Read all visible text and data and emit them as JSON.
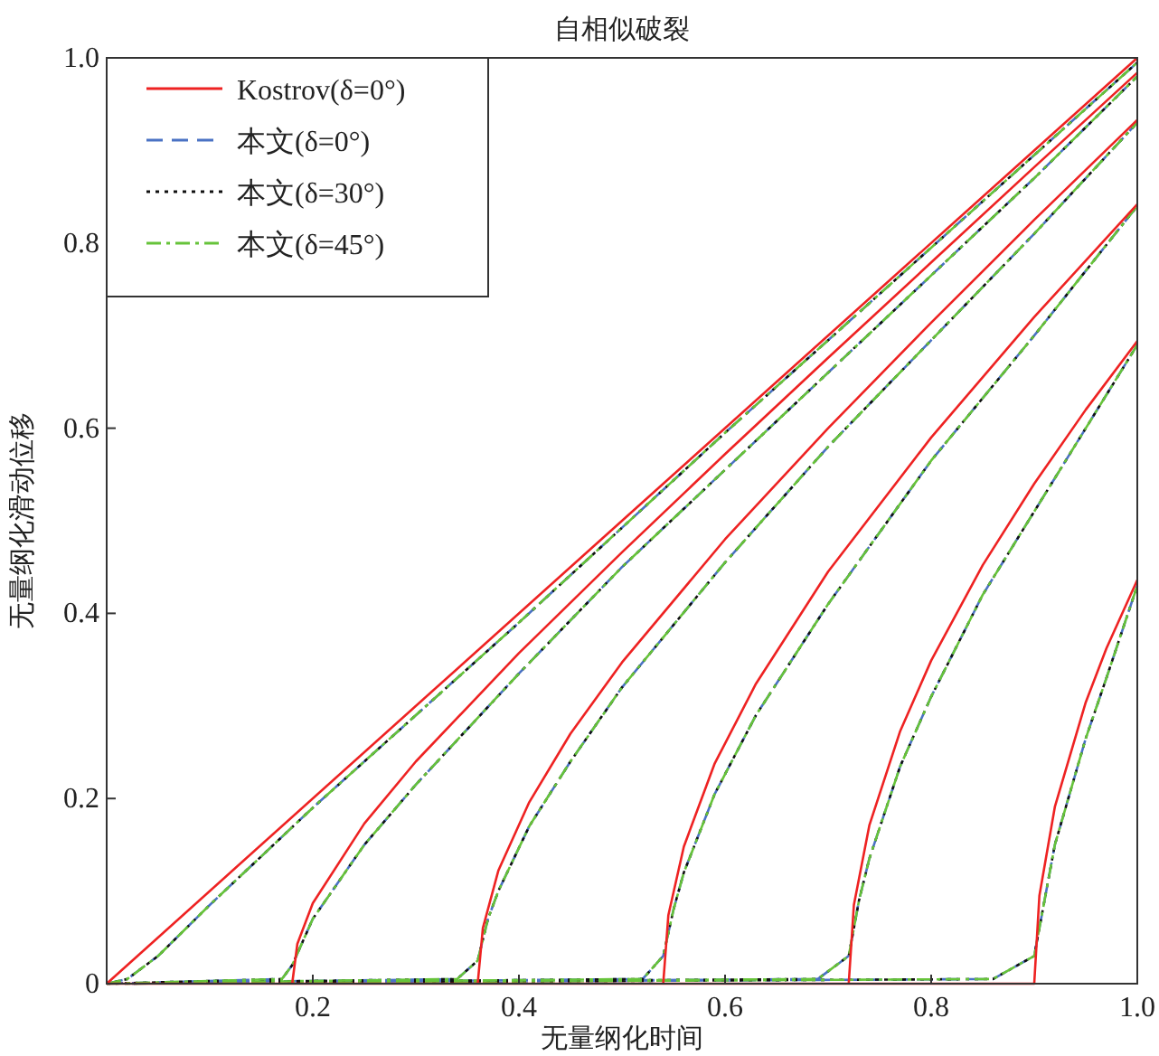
{
  "chart_data": {
    "type": "line",
    "title": "自相似破裂",
    "xlabel": "无量纲化时间",
    "ylabel": "无量纲化滑动位移",
    "xlim": [
      0,
      1.0
    ],
    "ylim": [
      0,
      1.0
    ],
    "xticks": [
      {
        "value": 0,
        "label": null
      },
      {
        "value": 0.2,
        "label": "0.2"
      },
      {
        "value": 0.4,
        "label": "0.4"
      },
      {
        "value": 0.6,
        "label": "0.6"
      },
      {
        "value": 0.8,
        "label": "0.8"
      },
      {
        "value": 1.0,
        "label": "1.0"
      }
    ],
    "yticks": [
      0,
      {
        "value": 0.2,
        "label": "0.2"
      },
      {
        "value": 0.4,
        "label": "0.4"
      },
      {
        "value": 0.6,
        "label": "0.6"
      },
      {
        "value": 0.8,
        "label": "0.8"
      },
      {
        "value": 1.0,
        "label": "1.0"
      }
    ],
    "grid": false,
    "legend": "top left",
    "marker": "none",
    "series": [
      {
        "name": "Kostrov(δ=0°)",
        "color": "#ee2222",
        "line_style": "solid",
        "x": [
          0,
          0.5,
          1.0,
          null,
          0,
          0.18,
          0.185,
          0.2,
          0.25,
          0.3,
          0.4,
          0.5,
          0.6,
          0.7,
          0.8,
          0.9,
          1.0,
          null,
          0,
          0.36,
          0.365,
          0.38,
          0.41,
          0.45,
          0.5,
          0.6,
          0.7,
          0.8,
          0.9,
          1.0,
          null,
          0,
          0.54,
          0.545,
          0.56,
          0.59,
          0.63,
          0.7,
          0.8,
          0.9,
          1.0,
          null,
          0,
          0.72,
          0.725,
          0.74,
          0.77,
          0.8,
          0.85,
          0.9,
          0.95,
          1.0,
          null,
          0,
          0.9,
          0.905,
          0.92,
          0.95,
          0.97,
          1.0
        ],
        "values": [
          0,
          0.5,
          1.0,
          null,
          0,
          0,
          0.043,
          0.087,
          0.173,
          0.24,
          0.357,
          0.466,
          0.572,
          0.676,
          0.779,
          0.882,
          0.984,
          null,
          0,
          0,
          0.06,
          0.122,
          0.196,
          0.27,
          0.347,
          0.48,
          0.6,
          0.714,
          0.825,
          0.933,
          null,
          0,
          0,
          0.074,
          0.148,
          0.238,
          0.324,
          0.445,
          0.59,
          0.72,
          0.842,
          null,
          0,
          0,
          0.085,
          0.171,
          0.273,
          0.349,
          0.452,
          0.54,
          0.62,
          0.694,
          null,
          0,
          0,
          0.095,
          0.191,
          0.304,
          0.362,
          0.436
        ]
      },
      {
        "name": "本文(δ=0°)",
        "color": "#4a72c4",
        "line_style": "dashed",
        "x": [
          0,
          0.02,
          0.05,
          0.1,
          0.2,
          0.4,
          0.6,
          0.8,
          1.0,
          null,
          0,
          0.17,
          0.18,
          0.19,
          0.2,
          0.25,
          0.3,
          0.4,
          0.5,
          0.6,
          0.7,
          0.8,
          0.9,
          1.0,
          null,
          0,
          0.34,
          0.36,
          0.37,
          0.38,
          0.41,
          0.45,
          0.5,
          0.6,
          0.7,
          0.8,
          0.9,
          1.0,
          null,
          0,
          0.52,
          0.54,
          0.55,
          0.56,
          0.59,
          0.63,
          0.7,
          0.8,
          0.9,
          1.0,
          null,
          0,
          0.69,
          0.72,
          0.73,
          0.74,
          0.77,
          0.8,
          0.85,
          0.9,
          0.95,
          1.0,
          null,
          0,
          0.86,
          0.9,
          0.91,
          0.92,
          0.95,
          0.97,
          1.0
        ],
        "values": [
          0,
          0.005,
          0.03,
          0.085,
          0.19,
          0.39,
          0.595,
          0.795,
          0.995,
          null,
          0,
          0.005,
          0.02,
          0.045,
          0.07,
          0.15,
          0.215,
          0.335,
          0.45,
          0.555,
          0.66,
          0.765,
          0.87,
          0.98,
          null,
          0,
          0.005,
          0.025,
          0.07,
          0.1,
          0.17,
          0.24,
          0.32,
          0.455,
          0.58,
          0.695,
          0.81,
          0.93,
          null,
          0,
          0.005,
          0.03,
          0.08,
          0.12,
          0.205,
          0.29,
          0.41,
          0.565,
          0.7,
          0.84,
          null,
          0,
          0.005,
          0.03,
          0.09,
          0.135,
          0.235,
          0.31,
          0.42,
          0.51,
          0.6,
          0.69,
          null,
          0,
          0.005,
          0.03,
          0.09,
          0.15,
          0.265,
          0.33,
          0.43
        ]
      },
      {
        "name": "本文(δ=30°)",
        "color": "#111111",
        "line_style": "dotted",
        "x": [
          0,
          0.02,
          0.05,
          0.1,
          0.2,
          0.4,
          0.6,
          0.8,
          1.0,
          null,
          0,
          0.17,
          0.18,
          0.19,
          0.2,
          0.25,
          0.3,
          0.4,
          0.5,
          0.6,
          0.7,
          0.8,
          0.9,
          1.0,
          null,
          0,
          0.34,
          0.36,
          0.37,
          0.38,
          0.41,
          0.45,
          0.5,
          0.6,
          0.7,
          0.8,
          0.9,
          1.0,
          null,
          0,
          0.52,
          0.54,
          0.55,
          0.56,
          0.59,
          0.63,
          0.7,
          0.8,
          0.9,
          1.0,
          null,
          0,
          0.69,
          0.72,
          0.73,
          0.74,
          0.77,
          0.8,
          0.85,
          0.9,
          0.95,
          1.0,
          null,
          0,
          0.86,
          0.9,
          0.91,
          0.92,
          0.95,
          0.97,
          1.0
        ],
        "values": [
          0,
          0.005,
          0.03,
          0.085,
          0.19,
          0.39,
          0.595,
          0.795,
          0.995,
          null,
          0,
          0.005,
          0.02,
          0.045,
          0.07,
          0.15,
          0.215,
          0.335,
          0.45,
          0.555,
          0.66,
          0.765,
          0.87,
          0.98,
          null,
          0,
          0.005,
          0.025,
          0.07,
          0.1,
          0.17,
          0.24,
          0.32,
          0.455,
          0.58,
          0.695,
          0.81,
          0.93,
          null,
          0,
          0.005,
          0.03,
          0.08,
          0.12,
          0.205,
          0.29,
          0.41,
          0.565,
          0.7,
          0.84,
          null,
          0,
          0.005,
          0.03,
          0.09,
          0.135,
          0.235,
          0.31,
          0.42,
          0.51,
          0.6,
          0.69,
          null,
          0,
          0.005,
          0.03,
          0.09,
          0.15,
          0.265,
          0.33,
          0.43
        ]
      },
      {
        "name": "本文(δ=45°)",
        "color": "#66c33a",
        "line_style": "dashdot",
        "x": [
          0,
          0.02,
          0.05,
          0.1,
          0.2,
          0.4,
          0.6,
          0.8,
          1.0,
          null,
          0,
          0.17,
          0.18,
          0.19,
          0.2,
          0.25,
          0.3,
          0.4,
          0.5,
          0.6,
          0.7,
          0.8,
          0.9,
          1.0,
          null,
          0,
          0.34,
          0.36,
          0.37,
          0.38,
          0.41,
          0.45,
          0.5,
          0.6,
          0.7,
          0.8,
          0.9,
          1.0,
          null,
          0,
          0.52,
          0.54,
          0.55,
          0.56,
          0.59,
          0.63,
          0.7,
          0.8,
          0.9,
          1.0,
          null,
          0,
          0.69,
          0.72,
          0.73,
          0.74,
          0.77,
          0.8,
          0.85,
          0.9,
          0.95,
          1.0,
          null,
          0,
          0.86,
          0.9,
          0.91,
          0.92,
          0.95,
          0.97,
          1.0
        ],
        "values": [
          0,
          0.005,
          0.03,
          0.085,
          0.19,
          0.39,
          0.595,
          0.795,
          0.995,
          null,
          0,
          0.005,
          0.02,
          0.045,
          0.07,
          0.15,
          0.215,
          0.335,
          0.45,
          0.555,
          0.66,
          0.765,
          0.87,
          0.98,
          null,
          0,
          0.005,
          0.025,
          0.07,
          0.1,
          0.17,
          0.24,
          0.32,
          0.455,
          0.58,
          0.695,
          0.81,
          0.93,
          null,
          0,
          0.005,
          0.03,
          0.08,
          0.12,
          0.205,
          0.29,
          0.41,
          0.565,
          0.7,
          0.84,
          null,
          0,
          0.005,
          0.03,
          0.09,
          0.135,
          0.235,
          0.31,
          0.42,
          0.51,
          0.6,
          0.69,
          null,
          0,
          0.005,
          0.03,
          0.09,
          0.15,
          0.265,
          0.33,
          0.43
        ]
      }
    ]
  }
}
